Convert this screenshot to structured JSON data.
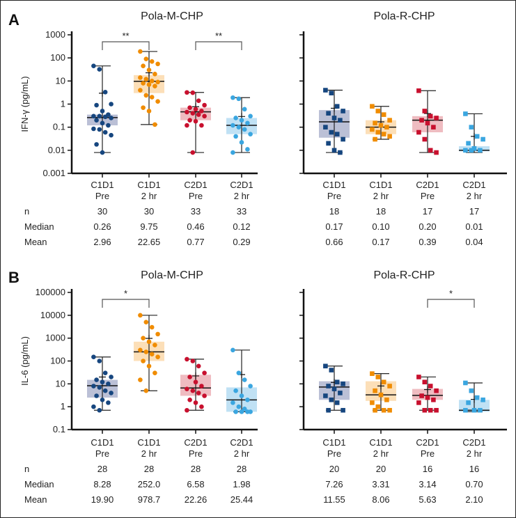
{
  "chart_data": [
    {
      "panel": "A",
      "title": "Pola-M-CHP",
      "type": "box",
      "ylabel": "IFN-γ (pg/mL)",
      "yscale": "log",
      "ylim": [
        0.001,
        1000
      ],
      "yticks": [
        "0.001",
        "0.01",
        "0.1",
        "1",
        "10",
        "100",
        "1000"
      ],
      "categories": [
        [
          "C1D1",
          "Pre"
        ],
        [
          "C1D1",
          "2 hr"
        ],
        [
          "C2D1",
          "Pre"
        ],
        [
          "C2D1",
          "2 hr"
        ]
      ],
      "marker": "circle",
      "groups": [
        {
          "min": 0.008,
          "q1": 0.12,
          "median": 0.26,
          "q3": 0.35,
          "max": 45,
          "mean": 2.96,
          "points": [
            45,
            32,
            3.3,
            1,
            0.9,
            0.5,
            0.35,
            0.3,
            0.3,
            0.28,
            0.25,
            0.2,
            0.15,
            0.12,
            0.085,
            0.08,
            0.06,
            0.045,
            0.018,
            0.008
          ]
        },
        {
          "min": 0.13,
          "q1": 3,
          "median": 9.75,
          "q3": 18,
          "max": 190,
          "mean": 22.65,
          "points": [
            190,
            90,
            70,
            55,
            45,
            30,
            20,
            14,
            12,
            10,
            9,
            8,
            7,
            6,
            4,
            2.4,
            2,
            1.3,
            0.7,
            0.5,
            0.13
          ]
        },
        {
          "min": 0.008,
          "q1": 0.2,
          "median": 0.46,
          "q3": 0.7,
          "max": 3.2,
          "mean": 0.77,
          "points": [
            3.2,
            3.1,
            1.4,
            0.9,
            0.7,
            0.6,
            0.5,
            0.45,
            0.4,
            0.35,
            0.3,
            0.2,
            0.18,
            0.12,
            0.12,
            0.008
          ]
        },
        {
          "min": 0.008,
          "q1": 0.05,
          "median": 0.12,
          "q3": 0.25,
          "max": 1.9,
          "mean": 0.29,
          "points": [
            1.9,
            1.7,
            0.6,
            0.3,
            0.25,
            0.2,
            0.15,
            0.12,
            0.1,
            0.08,
            0.05,
            0.04,
            0.022,
            0.011,
            0.008
          ]
        }
      ],
      "brackets": [
        {
          "from": 0,
          "to": 1,
          "label": "**"
        },
        {
          "from": 2,
          "to": 3,
          "label": "**"
        }
      ],
      "table": {
        "rows": [
          {
            "label": "n",
            "values": [
              "30",
              "30",
              "33",
              "33"
            ]
          },
          {
            "label": "Median",
            "values": [
              "0.26",
              "9.75",
              "0.46",
              "0.12"
            ]
          },
          {
            "label": "Mean",
            "values": [
              "2.96",
              "22.65",
              "0.77",
              "0.29"
            ]
          }
        ]
      }
    },
    {
      "panel": "A",
      "title": "Pola-R-CHP",
      "type": "box",
      "yscale": "log",
      "ylim": [
        0.001,
        1000
      ],
      "categories": [
        [
          "C1D1",
          "Pre"
        ],
        [
          "C1D1",
          "2 hr"
        ],
        [
          "C2D1",
          "Pre"
        ],
        [
          "C2D1",
          "2 hr"
        ]
      ],
      "marker": "square",
      "groups": [
        {
          "min": 0.008,
          "q1": 0.035,
          "median": 0.17,
          "q3": 0.55,
          "max": 4,
          "mean": 0.66,
          "points": [
            4,
            3,
            0.8,
            0.5,
            0.4,
            0.25,
            0.2,
            0.1,
            0.06,
            0.05,
            0.03,
            0.02,
            0.01,
            0.008
          ]
        },
        {
          "min": 0.03,
          "q1": 0.05,
          "median": 0.1,
          "q3": 0.2,
          "max": 0.8,
          "mean": 0.17,
          "points": [
            0.8,
            0.5,
            0.35,
            0.2,
            0.15,
            0.12,
            0.1,
            0.08,
            0.06,
            0.05,
            0.04,
            0.03
          ]
        },
        {
          "min": 0.008,
          "q1": 0.06,
          "median": 0.2,
          "q3": 0.3,
          "max": 3.8,
          "mean": 0.39,
          "points": [
            3.8,
            0.5,
            0.3,
            0.25,
            0.2,
            0.15,
            0.1,
            0.06,
            0.03,
            0.01,
            0.008
          ]
        },
        {
          "min": 0.008,
          "q1": 0.009,
          "median": 0.01,
          "q3": 0.015,
          "max": 0.38,
          "mean": 0.04,
          "points": [
            0.38,
            0.1,
            0.04,
            0.03,
            0.02,
            0.012,
            0.01,
            0.01,
            0.01
          ]
        }
      ],
      "brackets": [],
      "table": {
        "rows": [
          {
            "label": "n",
            "values": [
              "18",
              "18",
              "17",
              "17"
            ]
          },
          {
            "label": "Median",
            "values": [
              "0.17",
              "0.10",
              "0.20",
              "0.01"
            ]
          },
          {
            "label": "Mean",
            "values": [
              "0.66",
              "0.17",
              "0.39",
              "0.04"
            ]
          }
        ]
      }
    },
    {
      "panel": "B",
      "title": "Pola-M-CHP",
      "type": "box",
      "ylabel": "IL-6 (pg/mL)",
      "yscale": "log",
      "ylim": [
        0.1,
        100000
      ],
      "yticks": [
        "0.1",
        "1",
        "10",
        "100",
        "1000",
        "10000",
        "100000"
      ],
      "categories": [
        [
          "C1D1",
          "Pre"
        ],
        [
          "C1D1",
          "2 hr"
        ],
        [
          "C2D1",
          "Pre"
        ],
        [
          "C2D1",
          "2 hr"
        ]
      ],
      "marker": "circle",
      "groups": [
        {
          "min": 0.7,
          "q1": 2.5,
          "median": 8.28,
          "q3": 15,
          "max": 150,
          "mean": 19.9,
          "points": [
            150,
            100,
            30,
            20,
            15,
            12,
            10,
            8,
            7,
            5,
            4,
            3,
            2,
            1.5,
            1,
            0.7
          ]
        },
        {
          "min": 5,
          "q1": 100,
          "median": 252,
          "q3": 700,
          "max": 10000,
          "mean": 978.7,
          "points": [
            10000,
            5000,
            3000,
            1500,
            1000,
            700,
            500,
            300,
            250,
            200,
            150,
            100,
            60,
            30,
            15,
            5
          ]
        },
        {
          "min": 0.7,
          "q1": 3,
          "median": 6.58,
          "q3": 25,
          "max": 120,
          "mean": 22.26,
          "points": [
            120,
            100,
            60,
            30,
            20,
            12,
            8,
            6,
            5,
            4,
            3,
            2,
            1.5,
            1,
            0.7
          ]
        },
        {
          "min": 0.6,
          "q1": 0.6,
          "median": 1.98,
          "q3": 7,
          "max": 300,
          "mean": 25.44,
          "points": [
            300,
            30,
            15,
            8,
            5,
            3,
            2,
            1.5,
            1,
            0.8,
            0.6,
            0.6,
            0.6,
            0.6
          ]
        }
      ],
      "brackets": [
        {
          "from": 0,
          "to": 1,
          "label": "*"
        }
      ],
      "table": {
        "rows": [
          {
            "label": "n",
            "values": [
              "28",
              "28",
              "28",
              "28"
            ]
          },
          {
            "label": "Median",
            "values": [
              "8.28",
              "252.0",
              "6.58",
              "1.98"
            ]
          },
          {
            "label": "Mean",
            "values": [
              "19.90",
              "978.7",
              "22.26",
              "25.44"
            ]
          }
        ]
      }
    },
    {
      "panel": "B",
      "title": "Pola-R-CHP",
      "type": "box",
      "yscale": "log",
      "ylim": [
        0.1,
        100000
      ],
      "categories": [
        [
          "C1D1",
          "Pre"
        ],
        [
          "C1D1",
          "2 hr"
        ],
        [
          "C2D1",
          "Pre"
        ],
        [
          "C2D1",
          "2 hr"
        ]
      ],
      "marker": "square",
      "groups": [
        {
          "min": 0.7,
          "q1": 2,
          "median": 7.26,
          "q3": 13,
          "max": 60,
          "mean": 11.55,
          "points": [
            60,
            40,
            12,
            10,
            8,
            6,
            4,
            3,
            2,
            1.5,
            0.7,
            0.7
          ]
        },
        {
          "min": 0.7,
          "q1": 1.8,
          "median": 3.31,
          "q3": 13,
          "max": 28,
          "mean": 8.06,
          "points": [
            28,
            20,
            12,
            8,
            5,
            3.3,
            2,
            1.5,
            1,
            0.7,
            0.7,
            0.7
          ]
        },
        {
          "min": 0.7,
          "q1": 2,
          "median": 3.14,
          "q3": 6,
          "max": 20,
          "mean": 5.63,
          "points": [
            20,
            12,
            8,
            5,
            3,
            2.5,
            2,
            1.5,
            0.7,
            0.7,
            0.7
          ]
        },
        {
          "min": 0.6,
          "q1": 0.6,
          "median": 0.7,
          "q3": 2,
          "max": 11,
          "mean": 2.1,
          "points": [
            11,
            5,
            2.5,
            2,
            1.5,
            0.7,
            0.7,
            0.7
          ]
        }
      ],
      "brackets": [
        {
          "from": 2,
          "to": 3,
          "label": "*"
        }
      ],
      "table": {
        "rows": [
          {
            "label": "n",
            "values": [
              "20",
              "20",
              "16",
              "16"
            ]
          },
          {
            "label": "Median",
            "values": [
              "7.26",
              "3.31",
              "3.14",
              "0.70"
            ]
          },
          {
            "label": "Mean",
            "values": [
              "11.55",
              "8.06",
              "5.63",
              "2.10"
            ]
          }
        ]
      }
    }
  ],
  "panel_labels": [
    "A",
    "B"
  ],
  "colors": {
    "fill": [
      "#3c4a8a",
      "#f7a234",
      "#d2404c",
      "#4aa8e0"
    ],
    "point": [
      "#16467f",
      "#f08c00",
      "#c8102e",
      "#3aa6e0"
    ]
  }
}
